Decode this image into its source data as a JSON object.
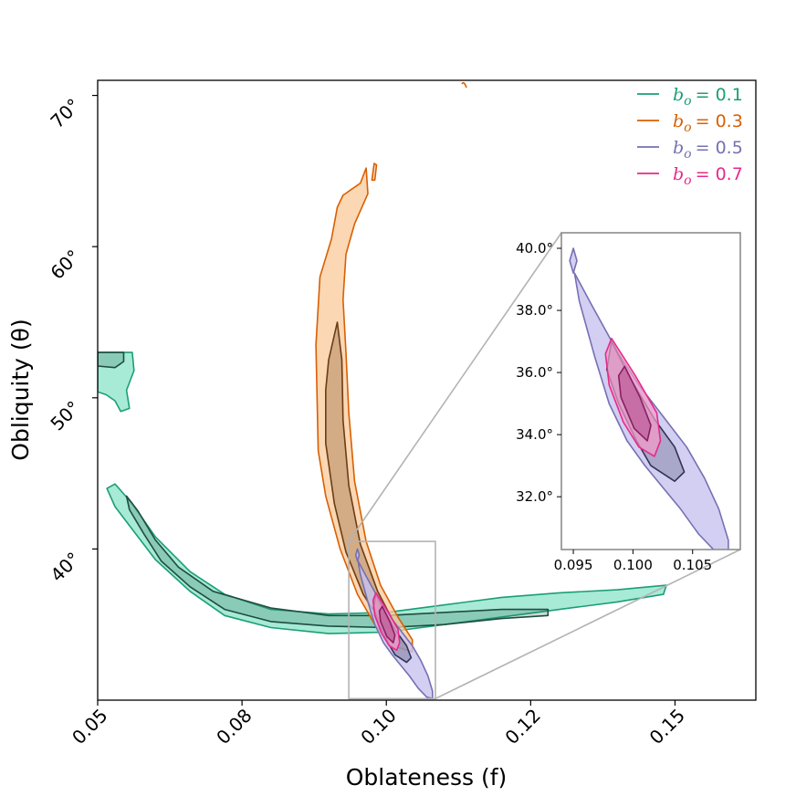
{
  "chart_data": {
    "type": "contour",
    "xlabel": "Oblateness (f)",
    "ylabel": "Obliquity (θ)",
    "xlim": [
      0.05,
      0.164
    ],
    "ylim": [
      30,
      71
    ],
    "xticks": [
      0.05,
      0.075,
      0.1,
      0.125,
      0.15
    ],
    "xtick_labels": [
      "0.05",
      "0.08",
      "0.10",
      "0.12",
      "0.15"
    ],
    "yticks": [
      40,
      50,
      60,
      70
    ],
    "ytick_labels": [
      "40°",
      "50°",
      "60°",
      "70°"
    ],
    "legend": {
      "position": "top-right",
      "entries": [
        {
          "symbol": "b",
          "subscript": "o",
          "value": "= 0.1"
        },
        {
          "symbol": "b",
          "subscript": "o",
          "value": "= 0.3"
        },
        {
          "symbol": "b",
          "subscript": "o",
          "value": "= 0.5"
        },
        {
          "symbol": "b",
          "subscript": "o",
          "value": "= 0.7"
        }
      ]
    },
    "series": [
      {
        "name": "b_o = 0.1",
        "color": "#1b9e77",
        "fill": "#5fd9b4",
        "outer": [
          [
            0.0516,
            44.0
          ],
          [
            0.053,
            44.3
          ],
          [
            0.056,
            43.0
          ],
          [
            0.06,
            40.8
          ],
          [
            0.066,
            38.5
          ],
          [
            0.072,
            37.0
          ],
          [
            0.08,
            36.0
          ],
          [
            0.09,
            35.7
          ],
          [
            0.1,
            35.8
          ],
          [
            0.11,
            36.3
          ],
          [
            0.12,
            36.8
          ],
          [
            0.13,
            37.1
          ],
          [
            0.14,
            37.3
          ],
          [
            0.1485,
            37.6
          ],
          [
            0.148,
            37.0
          ],
          [
            0.14,
            36.5
          ],
          [
            0.13,
            36.0
          ],
          [
            0.12,
            35.5
          ],
          [
            0.11,
            35.0
          ],
          [
            0.1,
            34.5
          ],
          [
            0.09,
            34.4
          ],
          [
            0.08,
            34.8
          ],
          [
            0.072,
            35.6
          ],
          [
            0.066,
            37.2
          ],
          [
            0.06,
            39.3
          ],
          [
            0.056,
            41.3
          ],
          [
            0.053,
            42.8
          ],
          [
            0.0516,
            44.0
          ]
        ],
        "inner": [
          [
            0.055,
            43.5
          ],
          [
            0.057,
            42.5
          ],
          [
            0.06,
            40.6
          ],
          [
            0.064,
            38.8
          ],
          [
            0.07,
            37.2
          ],
          [
            0.08,
            36.1
          ],
          [
            0.09,
            35.6
          ],
          [
            0.1,
            35.6
          ],
          [
            0.11,
            35.8
          ],
          [
            0.12,
            36.0
          ],
          [
            0.128,
            36.0
          ],
          [
            0.128,
            35.6
          ],
          [
            0.12,
            35.4
          ],
          [
            0.11,
            35.0
          ],
          [
            0.1,
            34.8
          ],
          [
            0.09,
            34.9
          ],
          [
            0.08,
            35.2
          ],
          [
            0.072,
            36.0
          ],
          [
            0.066,
            37.5
          ],
          [
            0.061,
            39.2
          ],
          [
            0.058,
            41.0
          ],
          [
            0.0555,
            42.6
          ],
          [
            0.055,
            43.5
          ]
        ],
        "fragment_outer": [
          [
            0.05,
            53.0
          ],
          [
            0.056,
            53.0
          ],
          [
            0.0563,
            51.8
          ],
          [
            0.055,
            50.5
          ],
          [
            0.0555,
            49.3
          ],
          [
            0.054,
            49.1
          ],
          [
            0.053,
            49.8
          ],
          [
            0.0515,
            50.2
          ],
          [
            0.05,
            50.4
          ]
        ],
        "fragment_inner": [
          [
            0.05,
            53.0
          ],
          [
            0.0545,
            53.0
          ],
          [
            0.0545,
            52.4
          ],
          [
            0.053,
            52.0
          ],
          [
            0.05,
            52.1
          ]
        ]
      },
      {
        "name": "b_o = 0.3",
        "color": "#d95f02",
        "fill": "#f9c99b",
        "outer": [
          [
            0.0878,
            53.5
          ],
          [
            0.0885,
            58.0
          ],
          [
            0.0905,
            60.5
          ],
          [
            0.0915,
            62.6
          ],
          [
            0.0925,
            63.4
          ],
          [
            0.0955,
            64.2
          ],
          [
            0.0965,
            65.2
          ],
          [
            0.0968,
            63.5
          ],
          [
            0.0945,
            61.5
          ],
          [
            0.093,
            59.5
          ],
          [
            0.0925,
            56.5
          ],
          [
            0.093,
            53.0
          ],
          [
            0.0935,
            49.0
          ],
          [
            0.0945,
            44.5
          ],
          [
            0.0965,
            40.5
          ],
          [
            0.099,
            37.6
          ],
          [
            0.102,
            35.5
          ],
          [
            0.1045,
            34.0
          ],
          [
            0.1045,
            33.2
          ],
          [
            0.101,
            33.6
          ],
          [
            0.098,
            35.0
          ],
          [
            0.095,
            37.0
          ],
          [
            0.092,
            40.0
          ],
          [
            0.0895,
            43.5
          ],
          [
            0.0882,
            46.5
          ]
        ],
        "inner": [
          [
            0.09,
            52.5
          ],
          [
            0.0915,
            55.0
          ],
          [
            0.0923,
            52.5
          ],
          [
            0.0925,
            48.5
          ],
          [
            0.0935,
            44.2
          ],
          [
            0.0955,
            40.3
          ],
          [
            0.0985,
            37.2
          ],
          [
            0.1015,
            35.0
          ],
          [
            0.1015,
            34.4
          ],
          [
            0.099,
            35.2
          ],
          [
            0.096,
            37.0
          ],
          [
            0.093,
            39.8
          ],
          [
            0.091,
            43.0
          ],
          [
            0.0895,
            47.0
          ],
          [
            0.0895,
            50.5
          ]
        ],
        "fragment": [
          [
            0.0975,
            64.4
          ],
          [
            0.0979,
            65.5
          ],
          [
            0.0983,
            65.4
          ],
          [
            0.098,
            64.4
          ]
        ]
      },
      {
        "name": "b_o = 0.5",
        "color": "#7570b3",
        "fill": "#c7c3ef",
        "inset_outer": [
          [
            0.0951,
            39.2
          ],
          [
            0.0965,
            38.2
          ],
          [
            0.0988,
            36.6
          ],
          [
            0.1005,
            35.6
          ],
          [
            0.1025,
            34.6
          ],
          [
            0.1045,
            33.6
          ],
          [
            0.106,
            32.6
          ],
          [
            0.1072,
            31.6
          ],
          [
            0.108,
            30.6
          ],
          [
            0.108,
            30.1
          ],
          [
            0.107,
            30.2
          ],
          [
            0.1055,
            30.8
          ],
          [
            0.104,
            31.6
          ],
          [
            0.1025,
            32.3
          ],
          [
            0.101,
            33.0
          ],
          [
            0.0995,
            33.8
          ],
          [
            0.098,
            35.0
          ],
          [
            0.0968,
            36.5
          ],
          [
            0.0955,
            38.3
          ],
          [
            0.0951,
            39.2
          ]
        ],
        "inset_inner": [
          [
            0.0982,
            37.0
          ],
          [
            0.0998,
            35.8
          ],
          [
            0.1018,
            34.5
          ],
          [
            0.1035,
            33.6
          ],
          [
            0.1043,
            32.8
          ],
          [
            0.1035,
            32.5
          ],
          [
            0.1015,
            33.0
          ],
          [
            0.1003,
            33.8
          ],
          [
            0.0988,
            35.0
          ],
          [
            0.0978,
            36.1
          ],
          [
            0.0982,
            37.0
          ]
        ],
        "inset_fragment": [
          [
            0.0947,
            39.6
          ],
          [
            0.095,
            40.0
          ],
          [
            0.0953,
            39.6
          ],
          [
            0.095,
            39.2
          ]
        ]
      },
      {
        "name": "b_o = 0.7",
        "color": "#e7298a",
        "fill": "#f59ac8",
        "inset_outer": [
          [
            0.0982,
            37.1
          ],
          [
            0.1002,
            35.9
          ],
          [
            0.102,
            34.7
          ],
          [
            0.1023,
            33.8
          ],
          [
            0.1018,
            33.3
          ],
          [
            0.1005,
            33.6
          ],
          [
            0.0992,
            34.4
          ],
          [
            0.098,
            35.6
          ],
          [
            0.0977,
            36.6
          ],
          [
            0.0982,
            37.1
          ]
        ],
        "inset_inner": [
          [
            0.0993,
            36.2
          ],
          [
            0.1006,
            35.2
          ],
          [
            0.1015,
            34.3
          ],
          [
            0.1012,
            33.8
          ],
          [
            0.1001,
            34.2
          ],
          [
            0.099,
            35.2
          ],
          [
            0.0988,
            35.9
          ],
          [
            0.0993,
            36.2
          ]
        ]
      }
    ],
    "inset": {
      "xlim": [
        0.094,
        0.109
      ],
      "ylim": [
        30.3,
        40.5
      ],
      "xticks": [
        0.095,
        0.1,
        0.105
      ],
      "xtick_labels": [
        "0.095",
        "0.100",
        "0.105"
      ],
      "yticks": [
        32,
        34,
        36,
        38,
        40
      ],
      "ytick_labels": [
        "32.0°",
        "34.0°",
        "36.0°",
        "38.0°",
        "40.0°"
      ],
      "zoom_region": {
        "x": [
          0.0935,
          0.1085
        ],
        "y": [
          30.1,
          40.5
        ]
      }
    }
  }
}
